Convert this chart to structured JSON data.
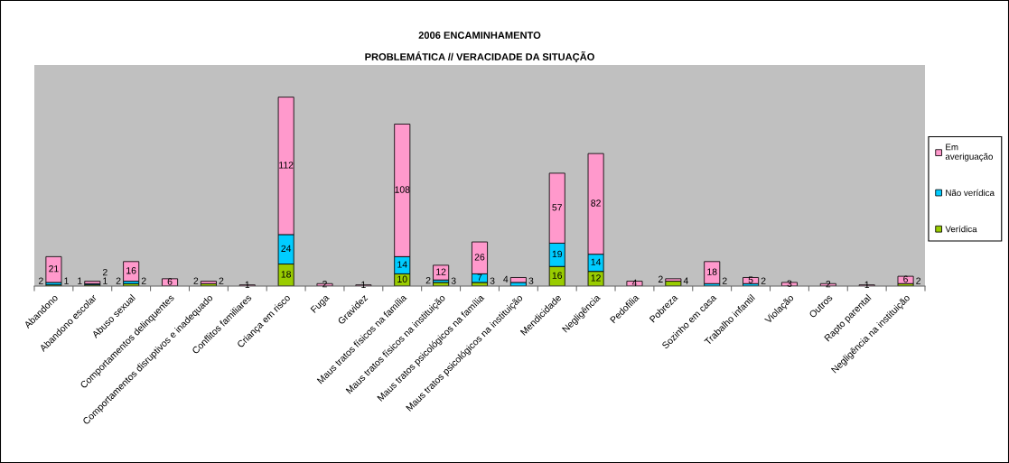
{
  "chart_data": {
    "type": "bar",
    "stacked": true,
    "title": "2006 ENCAMINHAMENTO",
    "subtitle": "PROBLEMÁTICA // VERACIDADE DA SITUAÇÃO",
    "categories": [
      "Abandono",
      "Abandono escolar",
      "Abuso sexual",
      "Comportamentos delinquentes",
      "Comportamentos disruptivos e inadequado",
      "Conflitos familiares",
      "Criança em risco",
      "Fuga",
      "Gravidez",
      "Maus tratos físicos na família",
      "Maus tratos físicos na instituição",
      "Maus tratos psicológicos na família",
      "Maus tratos psicológicos na instituição",
      "Mendicidade",
      "Negligência",
      "Pedofilia",
      "Pobreza",
      "Sozinho em casa",
      "Trabalho infantil",
      "Violação",
      "Outros",
      "Rapto parental",
      "Negligência na instituição"
    ],
    "series": [
      {
        "name": "Verídica",
        "color": "#99cc00",
        "values": [
          1,
          1,
          2,
          null,
          2,
          null,
          18,
          null,
          null,
          10,
          3,
          3,
          null,
          16,
          12,
          null,
          4,
          null,
          null,
          null,
          null,
          null,
          2
        ]
      },
      {
        "name": "Não verídica",
        "color": "#00ccff",
        "values": [
          2,
          1,
          2,
          null,
          null,
          null,
          24,
          null,
          null,
          14,
          2,
          7,
          3,
          19,
          14,
          null,
          null,
          2,
          2,
          null,
          null,
          null,
          null
        ]
      },
      {
        "name": "Em averiguação",
        "color": "#ff99cc",
        "values": [
          21,
          2,
          16,
          6,
          2,
          1,
          112,
          2,
          1,
          108,
          12,
          26,
          4,
          57,
          82,
          4,
          2,
          18,
          5,
          3,
          2,
          1,
          6
        ]
      }
    ],
    "data_labels": true,
    "legend": "right",
    "tick_labels": "x"
  }
}
